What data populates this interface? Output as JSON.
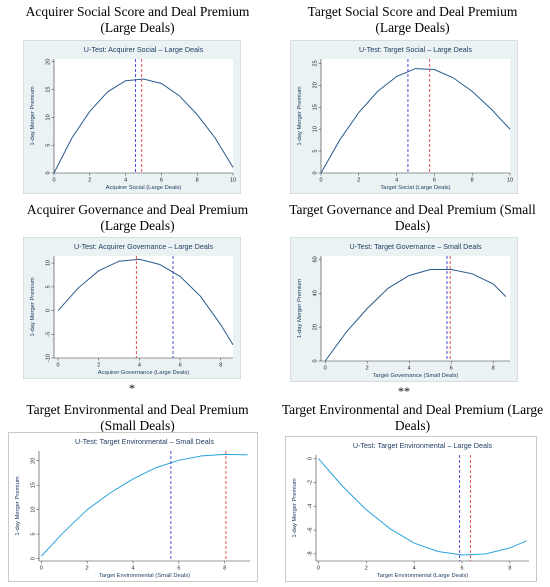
{
  "panels": [
    {
      "heading": [
        "Acquirer Social Score and Deal Premium",
        "(Large Deals)"
      ],
      "note": "",
      "chart_data": {
        "type": "line",
        "title": "U-Test: Acquirer Social – Large Deals",
        "xlabel": "Acquirer Social (Large Deals)",
        "ylabel": "1-day Merger Premium",
        "xlim": [
          0,
          10
        ],
        "ylim": [
          0,
          20.5
        ],
        "xticks": [
          "0",
          "2",
          "4",
          "6",
          "8",
          "10"
        ],
        "yticks": [
          "0",
          "5",
          "10",
          "15",
          "20"
        ],
        "series": [
          {
            "x": [
              0,
              1,
              2,
              3,
              4,
              5,
              6,
              7,
              8,
              9,
              10
            ],
            "y": [
              0,
              6.3,
              11.1,
              14.6,
              16.6,
              16.9,
              16.1,
              13.9,
              10.5,
              6.3,
              1
            ]
          }
        ],
        "vlines": [
          {
            "x": 4.55,
            "color": "#3b3bd4"
          },
          {
            "x": 4.9,
            "color": "#e0414a"
          }
        ],
        "line_color": "#2a5a8c",
        "background": "#eaf2f3"
      }
    },
    {
      "heading": [
        "Target Social Score and Deal Premium",
        "(Large Deals)"
      ],
      "note": "",
      "chart_data": {
        "type": "line",
        "title": "U-Test: Target Social – Large Deals",
        "xlabel": "Target Social (Large Deals)",
        "ylabel": "1-day Merger Premium",
        "xlim": [
          0,
          10
        ],
        "ylim": [
          0,
          26
        ],
        "xticks": [
          "0",
          "2",
          "4",
          "6",
          "8",
          "10"
        ],
        "yticks": [
          "0",
          "5",
          "10",
          "15",
          "20",
          "25"
        ],
        "series": [
          {
            "x": [
              0,
              1,
              2,
              3,
              4,
              5,
              6,
              7,
              8,
              9,
              10
            ],
            "y": [
              0,
              7.6,
              13.8,
              18.6,
              22,
              23.8,
              23.6,
              21.7,
              18.6,
              14.6,
              10
            ]
          }
        ],
        "vlines": [
          {
            "x": 4.6,
            "color": "#3b3bd4"
          },
          {
            "x": 5.75,
            "color": "#e0414a"
          }
        ],
        "line_color": "#2a5a8c",
        "background": "#eaf2f3"
      }
    },
    {
      "heading": [
        "Acquirer Governance and Deal Premium",
        "(Large Deals)"
      ],
      "note": "*",
      "chart_data": {
        "type": "line",
        "title": "U-Test: Acquirer Governance – Large Deals",
        "xlabel": "Acquirer Governance (Large Deals)",
        "ylabel": "1-day Merger Premium",
        "xlim": [
          -0.2,
          8.6
        ],
        "ylim": [
          -10,
          11.5
        ],
        "xticks": [
          "0",
          "2",
          "4",
          "6",
          "8"
        ],
        "yticks": [
          "-10",
          "-5",
          "0",
          "5",
          "10"
        ],
        "series": [
          {
            "x": [
              0,
              1,
              2,
              3,
              4,
              5,
              6,
              7,
              8,
              8.6
            ],
            "y": [
              0,
              4.8,
              8.4,
              10.4,
              10.8,
              9.7,
              7.2,
              3,
              -3,
              -7.2
            ]
          }
        ],
        "vlines": [
          {
            "x": 3.85,
            "color": "#e0414a"
          },
          {
            "x": 5.65,
            "color": "#3b3bd4"
          }
        ],
        "line_color": "#2a5a8c",
        "background": "#eaf2f3"
      }
    },
    {
      "heading": [
        "Target Governance and Deal Premium (Small",
        "Deals)"
      ],
      "note": "**",
      "chart_data": {
        "type": "line",
        "title": "U-Test: Target Governance – Small Deals",
        "xlabel": "Target Governance (Small Deals)",
        "ylabel": "1-day Merger Premium",
        "xlim": [
          -0.2,
          8.8
        ],
        "ylim": [
          0,
          62
        ],
        "xticks": [
          "0",
          "2",
          "4",
          "6",
          "8"
        ],
        "yticks": [
          "0",
          "20",
          "40",
          "60"
        ],
        "series": [
          {
            "x": [
              0,
              1,
              2,
              3,
              4,
              5,
              6,
              7,
              8,
              8.6
            ],
            "y": [
              0,
              17,
              31,
              43,
              50.5,
              54,
              54,
              51.5,
              45.5,
              38
            ]
          }
        ],
        "vlines": [
          {
            "x": 5.8,
            "color": "#3b3bd4"
          },
          {
            "x": 5.95,
            "color": "#e0414a"
          }
        ],
        "line_color": "#2a5a8c",
        "background": "#eaf2f3"
      }
    },
    {
      "heading": [
        "Target Environmental and Deal Premium",
        "(Small Deals)"
      ],
      "note": "",
      "chart_data": {
        "type": "line",
        "title": "U-Test: Target Environmental – Small Deals",
        "xlabel": "Target Environmental (Small Deals)",
        "ylabel": "1-day Merger Premium",
        "xlim": [
          -0.1,
          9.1
        ],
        "ylim": [
          -0.5,
          22
        ],
        "xticks": [
          "0",
          "2",
          "4",
          "6",
          "8"
        ],
        "yticks": [
          "0",
          "5",
          "10",
          "15",
          "20"
        ],
        "series": [
          {
            "x": [
              0,
              1,
              2,
              3,
              4,
              5,
              6,
              7,
              8,
              9
            ],
            "y": [
              0.5,
              5.5,
              10,
              13.4,
              16.3,
              18.6,
              20.1,
              21,
              21.3,
              21.2
            ]
          }
        ],
        "vlines": [
          {
            "x": 5.65,
            "color": "#3b3bd4"
          },
          {
            "x": 8.05,
            "color": "#e0414a"
          }
        ],
        "line_color": "#29a3dc",
        "background": "#ffffff"
      }
    },
    {
      "heading": [
        "Target Environmental and Deal Premium (Large",
        "Deals)"
      ],
      "note": "",
      "chart_data": {
        "type": "line",
        "title": "U-Test: Target Environmental – Large Deals",
        "xlabel": "Target Environmental (Large Deals)",
        "ylabel": "1-day Merger Premium",
        "xlim": [
          -0.1,
          8.8
        ],
        "ylim": [
          -8.6,
          0.3
        ],
        "xticks": [
          "0",
          "2",
          "4",
          "6",
          "8"
        ],
        "yticks": [
          "0",
          "-2",
          "-4",
          "-6",
          "-8"
        ],
        "series": [
          {
            "x": [
              0,
              1,
              2,
              3,
              4,
              5,
              6,
              7,
              8,
              8.7
            ],
            "y": [
              0,
              -2.3,
              -4.3,
              -5.9,
              -7.1,
              -7.8,
              -8.1,
              -8,
              -7.5,
              -6.9
            ]
          }
        ],
        "vlines": [
          {
            "x": 5.9,
            "color": "#3b3bd4"
          },
          {
            "x": 6.35,
            "color": "#e0414a"
          }
        ],
        "line_color": "#29a3dc",
        "background": "#ffffff"
      }
    }
  ]
}
